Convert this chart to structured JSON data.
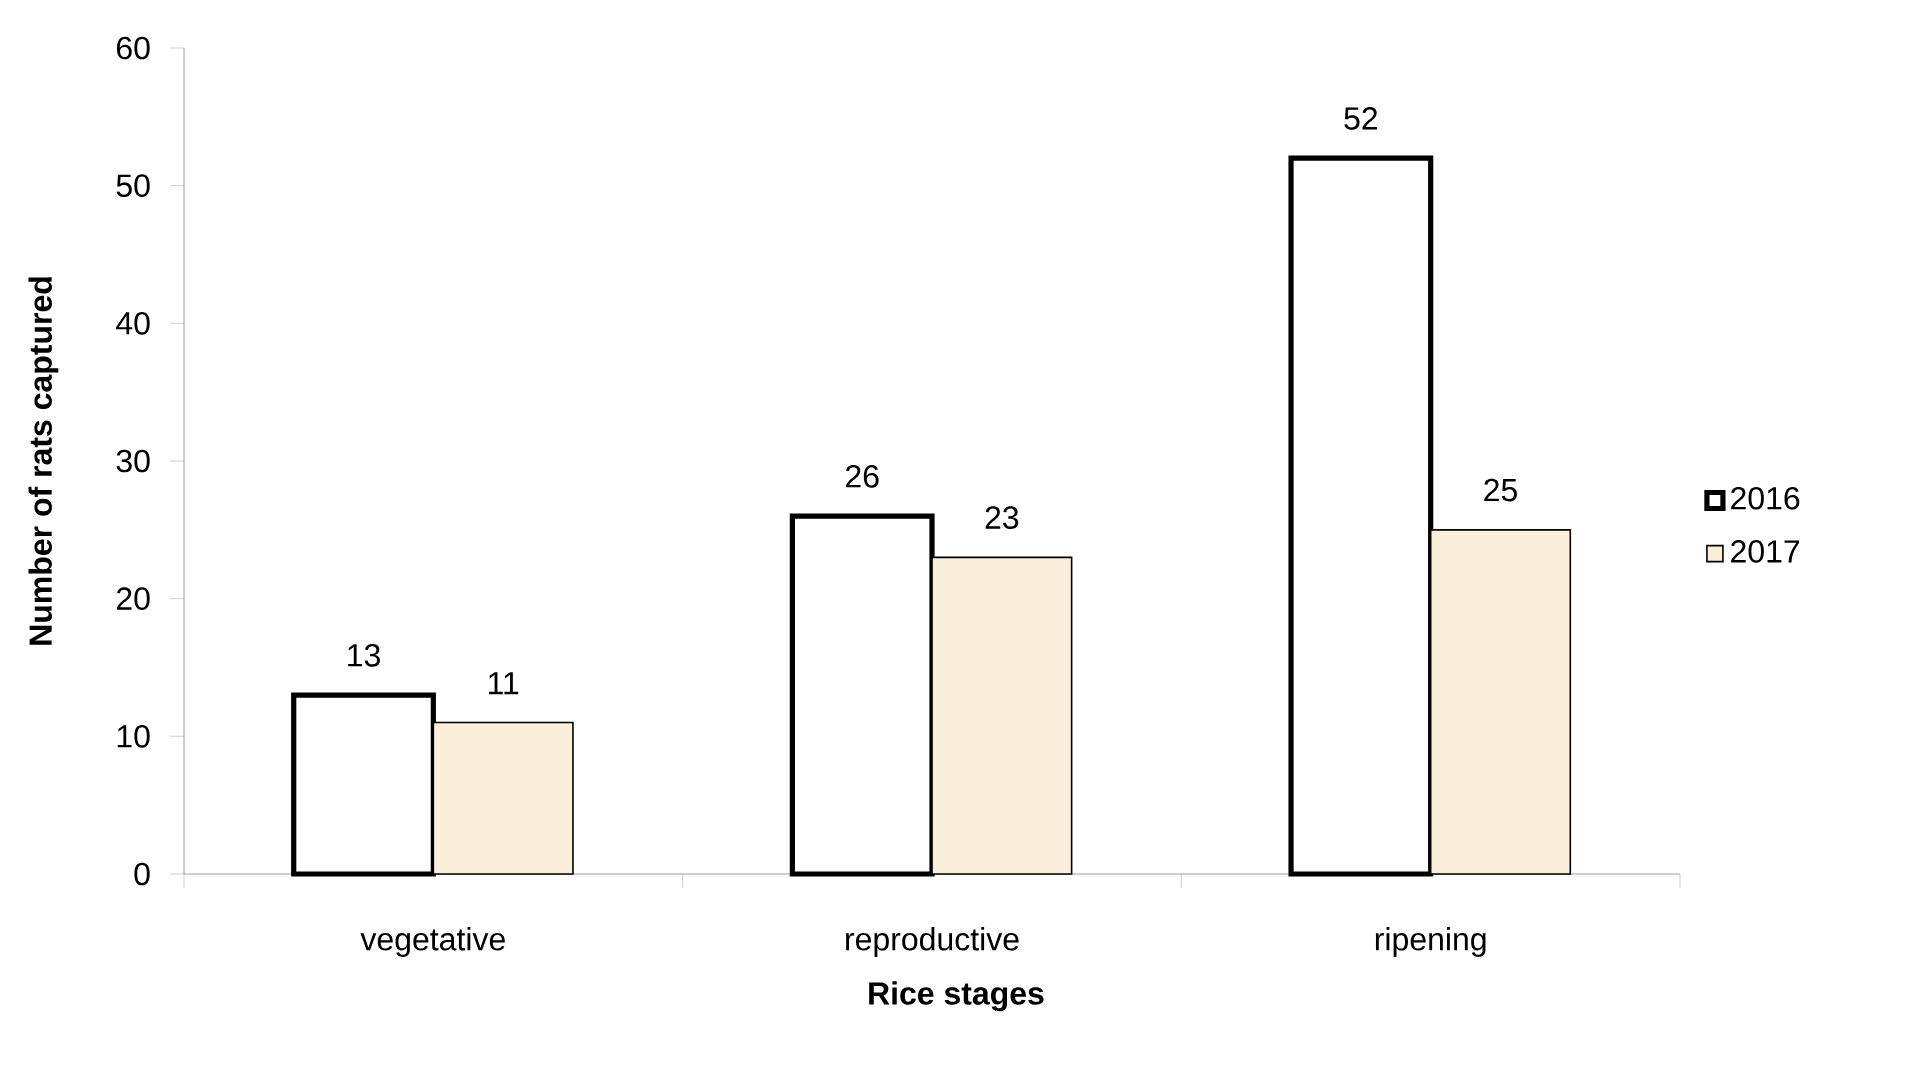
{
  "chart_data": {
    "type": "bar",
    "xlabel": "Rice stages",
    "ylabel": "Number of rats captured",
    "categories": [
      "vegetative",
      "reproductive",
      "ripening"
    ],
    "series": [
      {
        "name": "2016",
        "color": "#ffffff",
        "values": [
          13,
          26,
          52
        ]
      },
      {
        "name": "2017",
        "color": "#fbefdb",
        "values": [
          11,
          23,
          25
        ]
      }
    ],
    "ylim": [
      0,
      60
    ],
    "yticks": [
      0,
      10,
      20,
      30,
      40,
      50,
      60
    ],
    "data_labels": true,
    "legend": "right",
    "grid": false
  }
}
